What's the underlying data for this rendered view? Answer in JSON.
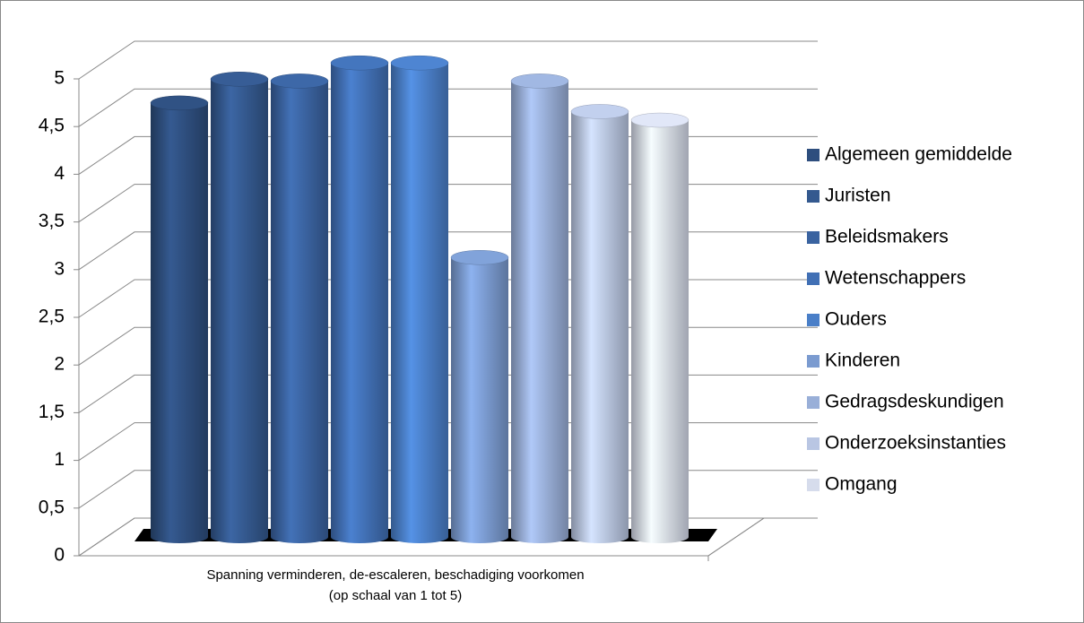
{
  "chart_data": {
    "type": "bar",
    "categories": [
      "Spanning verminderen, de-escaleren, beschadiging voorkomen"
    ],
    "x_label": "(op schaal van 1 tot 5)",
    "ylim": [
      0,
      5
    ],
    "yticks": [
      0,
      {
        "value": 0.5,
        "label": "0,5"
      },
      1,
      {
        "value": 1.5,
        "label": "1,5"
      },
      2,
      {
        "value": 2.5,
        "label": "2,5"
      },
      3,
      {
        "value": 3.5,
        "label": "3,5"
      },
      4,
      {
        "value": 4.5,
        "label": "4,5"
      },
      5
    ],
    "grid": true,
    "legend": "right",
    "series": [
      {
        "name": "Algemeen gemiddelde",
        "color": "#2e4e7e",
        "values": [
          4.55
        ]
      },
      {
        "name": "Juristen",
        "color": "#34598f",
        "values": [
          4.8
        ]
      },
      {
        "name": "Beleidsmakers",
        "color": "#3a63a0",
        "values": [
          4.78
        ]
      },
      {
        "name": "Wetenschappers",
        "color": "#4170b5",
        "values": [
          4.97
        ]
      },
      {
        "name": "Ouders",
        "color": "#4a7fc8",
        "values": [
          4.97
        ]
      },
      {
        "name": "Kinderen",
        "color": "#7b9bd0",
        "values": [
          2.93
        ]
      },
      {
        "name": "Gedragsdeskundigen",
        "color": "#99afd8",
        "values": [
          4.78
        ]
      },
      {
        "name": "Onderzoeksinstanties",
        "color": "#b9c6e3",
        "values": [
          4.46
        ]
      },
      {
        "name": "Omgang",
        "color": "#d6dcec",
        "values": [
          4.37
        ]
      }
    ]
  }
}
